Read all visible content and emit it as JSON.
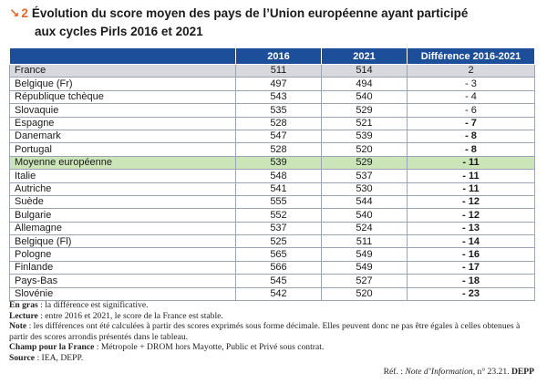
{
  "heading": {
    "number": "2",
    "title_line1": "Évolution du score moyen des pays de l’Union européenne ayant participé",
    "title_line2": "aux cycles Pirls 2016 et 2021"
  },
  "table": {
    "columns": [
      "",
      "2016",
      "2021",
      "Différence 2016-2021"
    ],
    "rows": [
      {
        "country": "France",
        "y2016": "511",
        "y2021": "514",
        "diff": "2",
        "significant": false,
        "highlight": "france"
      },
      {
        "country": "Belgique (Fr)",
        "y2016": "497",
        "y2021": "494",
        "diff": "- 3",
        "significant": false,
        "highlight": ""
      },
      {
        "country": "République tchèque",
        "y2016": "543",
        "y2021": "540",
        "diff": "- 4",
        "significant": false,
        "highlight": ""
      },
      {
        "country": "Slovaquie",
        "y2016": "535",
        "y2021": "529",
        "diff": "- 6",
        "significant": false,
        "highlight": ""
      },
      {
        "country": "Espagne",
        "y2016": "528",
        "y2021": "521",
        "diff": "- 7",
        "significant": true,
        "highlight": ""
      },
      {
        "country": "Danemark",
        "y2016": "547",
        "y2021": "539",
        "diff": "- 8",
        "significant": true,
        "highlight": ""
      },
      {
        "country": "Portugal",
        "y2016": "528",
        "y2021": "520",
        "diff": "- 8",
        "significant": true,
        "highlight": ""
      },
      {
        "country": "Moyenne européenne",
        "y2016": "539",
        "y2021": "529",
        "diff": "- 11",
        "significant": true,
        "highlight": "euro"
      },
      {
        "country": "Italie",
        "y2016": "548",
        "y2021": "537",
        "diff": "- 11",
        "significant": true,
        "highlight": ""
      },
      {
        "country": "Autriche",
        "y2016": "541",
        "y2021": "530",
        "diff": "- 11",
        "significant": true,
        "highlight": ""
      },
      {
        "country": "Suède",
        "y2016": "555",
        "y2021": "544",
        "diff": "- 12",
        "significant": true,
        "highlight": ""
      },
      {
        "country": "Bulgarie",
        "y2016": "552",
        "y2021": "540",
        "diff": "- 12",
        "significant": true,
        "highlight": ""
      },
      {
        "country": "Allemagne",
        "y2016": "537",
        "y2021": "524",
        "diff": "- 13",
        "significant": true,
        "highlight": ""
      },
      {
        "country": "Belgique (Fl)",
        "y2016": "525",
        "y2021": "511",
        "diff": "- 14",
        "significant": true,
        "highlight": ""
      },
      {
        "country": "Pologne",
        "y2016": "565",
        "y2021": "549",
        "diff": "- 16",
        "significant": true,
        "highlight": ""
      },
      {
        "country": "Finlande",
        "y2016": "566",
        "y2021": "549",
        "diff": "- 17",
        "significant": true,
        "highlight": ""
      },
      {
        "country": "Pays-Bas",
        "y2016": "545",
        "y2021": "527",
        "diff": "- 18",
        "significant": true,
        "highlight": ""
      },
      {
        "country": "Slovénie",
        "y2016": "542",
        "y2021": "520",
        "diff": "- 23",
        "significant": true,
        "highlight": ""
      }
    ]
  },
  "notes": {
    "gras_label": "En gras",
    "gras_text": " : la différence est significative.",
    "lecture_label": "Lecture",
    "lecture_text": " : entre 2016 et 2021, le score de la France est stable.",
    "note_label": "Note",
    "note_text": " : les différences ont été calculées à partir des scores exprimés sous forme décimale. Elles peuvent donc ne pas être égales à celles obtenues à partir des scores arrondis présentés dans le tableau.",
    "champ_label": "Champ pour la France",
    "champ_text": " : Métropole + DROM hors Mayotte, Public et Privé sous contrat.",
    "source_label": "Source",
    "source_text": " : IEA, DEPP."
  },
  "reference": {
    "prefix": "Réf. : ",
    "title": "Note d’Information",
    "number": ", n° 23.21. ",
    "source": "DEPP"
  },
  "colors": {
    "header_blue": "#1d4e9a",
    "accent_orange": "#e4682a",
    "france_grey": "#d7d9de",
    "euro_green": "#cbe5b8"
  }
}
